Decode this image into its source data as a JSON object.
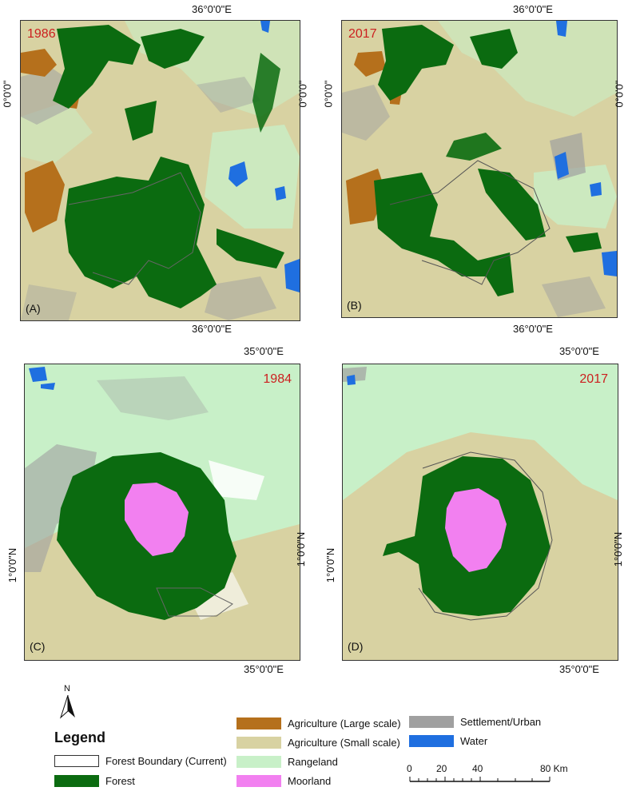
{
  "panels": {
    "A": {
      "year": "1986",
      "label": "(A)",
      "coord_top": "36°0'0\"E",
      "coord_bottom": "36°0'0\"E",
      "coord_left": "0°0'0\"",
      "coord_right": "0°0'0\""
    },
    "B": {
      "year": "2017",
      "label": "(B)",
      "coord_top": "36°0'0\"E",
      "coord_bottom": "36°0'0\"E",
      "coord_left": "0°0'0\"",
      "coord_right": "0°0'0\""
    },
    "C": {
      "year": "1984",
      "label": "(C)",
      "coord_top": "35°0'0\"E",
      "coord_bottom": "35°0'0\"E",
      "coord_left": "1°0'0\"N",
      "coord_right": "1°0'0\"N"
    },
    "D": {
      "year": "2017",
      "label": "(D)",
      "coord_top": "35°0'0\"E",
      "coord_bottom": "35°0'0\"E",
      "coord_left": "1°0'0\"N",
      "coord_right": "1°0'0\"N"
    }
  },
  "north_arrow": "N",
  "legend": {
    "title": "Legend",
    "items": [
      {
        "label": "Forest Boundary (Current)",
        "color": "#ffffff",
        "outline": true
      },
      {
        "label": "Forest",
        "color": "#0b6b10"
      },
      {
        "label": "Agriculture (Large scale)",
        "color": "#b5701c"
      },
      {
        "label": "Agriculture (Small scale)",
        "color": "#d8d2a2"
      },
      {
        "label": "Rangeland",
        "color": "#c8f0c8"
      },
      {
        "label": "Moorland",
        "color": "#f280f0"
      },
      {
        "label": "Settlement/Urban",
        "color": "#a0a0a0"
      },
      {
        "label": "Water",
        "color": "#1f6fe0"
      }
    ]
  },
  "scale_bar": {
    "labels": [
      "0",
      "20",
      "40",
      "80 Km"
    ]
  },
  "colors": {
    "forest": "#0b6b10",
    "agri_large": "#b5701c",
    "agri_small": "#d8d2a2",
    "rangeland": "#c8f0c8",
    "moorland": "#f280f0",
    "urban": "#a0a0a0",
    "water": "#1f6fe0"
  }
}
